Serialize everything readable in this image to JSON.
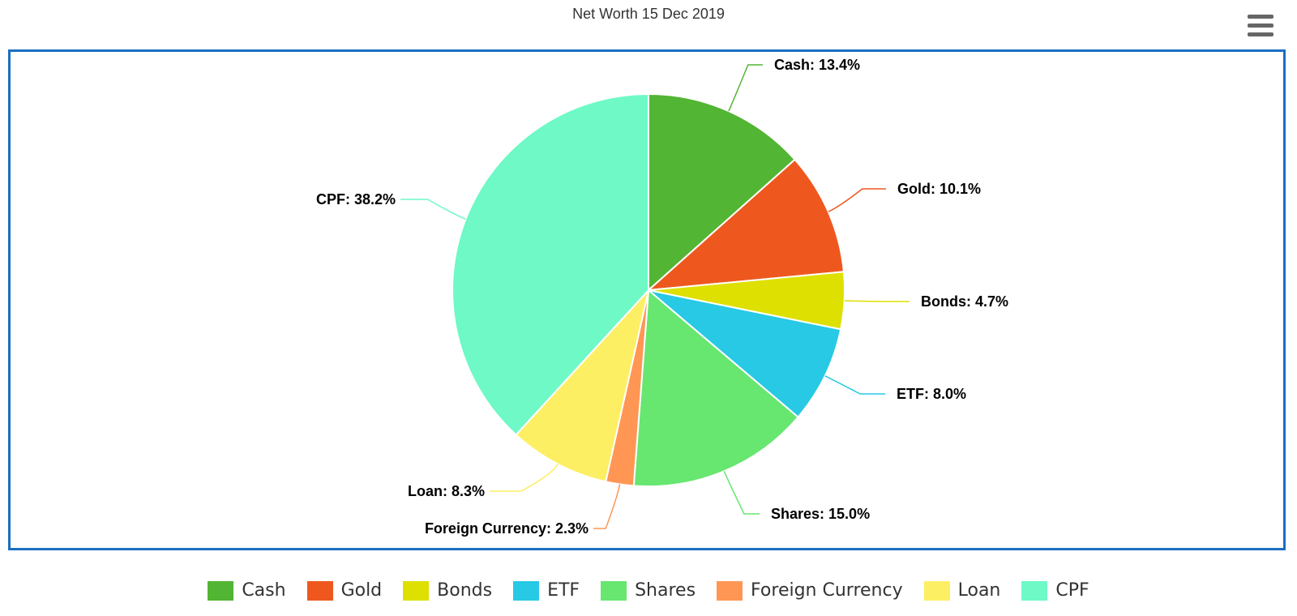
{
  "chart_data": {
    "type": "pie",
    "title": "Net Worth 15 Dec 2019",
    "slices": [
      {
        "name": "Cash",
        "value": 13.4,
        "label": "Cash: 13.4%",
        "color": "#52b533"
      },
      {
        "name": "Gold",
        "value": 10.1,
        "label": "Gold: 10.1%",
        "color": "#ee581e"
      },
      {
        "name": "Bonds",
        "value": 4.7,
        "label": "Bonds: 4.7%",
        "color": "#dde000"
      },
      {
        "name": "ETF",
        "value": 8.0,
        "label": "ETF: 8.0%",
        "color": "#27c9e5"
      },
      {
        "name": "Shares",
        "value": 15.0,
        "label": "Shares: 15.0%",
        "color": "#67e670"
      },
      {
        "name": "Foreign Currency",
        "value": 2.3,
        "label": "Foreign Currency: 2.3%",
        "color": "#ff9654"
      },
      {
        "name": "Loan",
        "value": 8.3,
        "label": "Loan: 8.3%",
        "color": "#fdef64"
      },
      {
        "name": "CPF",
        "value": 38.2,
        "label": "CPF: 38.2%",
        "color": "#6ef9c6"
      }
    ],
    "legend": {
      "placement": "bottom"
    }
  },
  "icons": {
    "menu": "hamburger-menu-icon"
  },
  "colors": {
    "frame_border": "#1a6fc2",
    "menu_icon": "#666666",
    "label_text": "#000000"
  }
}
